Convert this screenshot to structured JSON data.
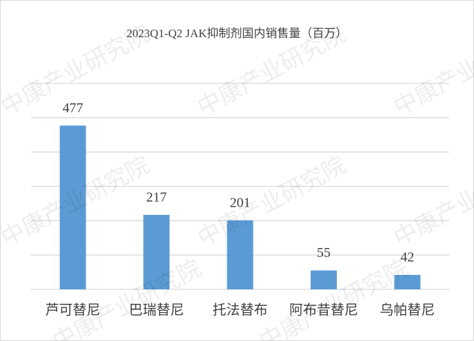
{
  "chart_data": {
    "type": "bar",
    "title": "2023Q1-Q2 JAK抑制剂国内销售量（百万）",
    "categories": [
      "芦可替尼",
      "巴瑞替尼",
      "托法替布",
      "阿布昔替尼",
      "乌帕替尼"
    ],
    "values": [
      477,
      217,
      201,
      55,
      42
    ],
    "color": "#5b9bd5",
    "ylim": [
      0,
      600
    ],
    "yticks": [
      0,
      100,
      200,
      300,
      400,
      500,
      600
    ],
    "grid": true,
    "watermark": "中康产业研究院"
  }
}
